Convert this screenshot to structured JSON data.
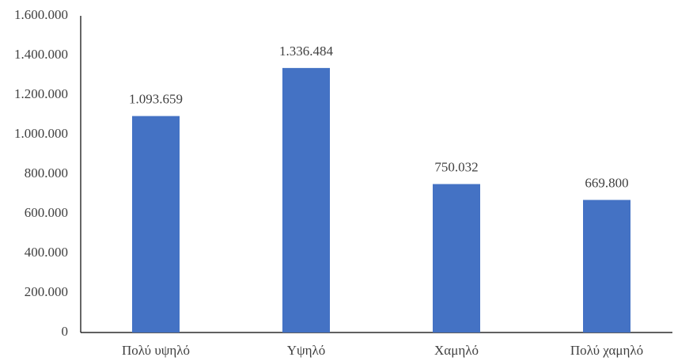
{
  "chart_data": {
    "type": "bar",
    "categories": [
      "Πολύ υψηλό",
      "Υψηλό",
      "Χαμηλό",
      "Πολύ χαμηλό"
    ],
    "values": [
      1093659,
      1336484,
      750032,
      669800
    ],
    "value_labels": [
      "1.093.659",
      "1.336.484",
      "750.032",
      "669.800"
    ],
    "color": "#4472c4",
    "ylim": [
      0,
      1600000
    ],
    "yticks": [
      0,
      {
        "value": 200000,
        "label": "200.000"
      },
      {
        "value": 400000,
        "label": "400.000"
      },
      {
        "value": 600000,
        "label": "600.000"
      },
      {
        "value": 800000,
        "label": "800.000"
      },
      {
        "value": 1000000,
        "label": "1.000.000"
      },
      {
        "value": 1200000,
        "label": "1.200.000"
      },
      {
        "value": 1400000,
        "label": "1.400.000"
      },
      {
        "value": 1600000,
        "label": "1.600.000"
      }
    ],
    "grid": false
  }
}
